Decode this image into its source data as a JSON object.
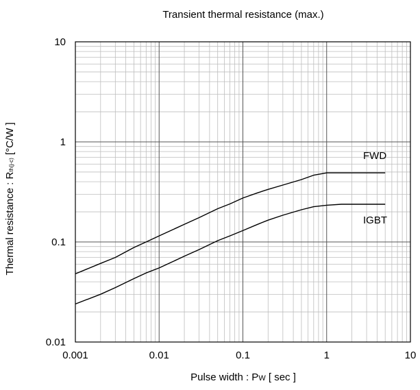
{
  "chart_data": {
    "type": "line",
    "title": "Transient thermal resistance (max.)",
    "xlabel": {
      "prefix": "Pulse width : P",
      "sub": "W",
      "suffix": " [ sec ]"
    },
    "ylabel": {
      "prefix": "Thermal resistance : R",
      "sub": "th(j-c)",
      "suffix": " [°C/W ]"
    },
    "x_scale": "log",
    "y_scale": "log",
    "xlim": [
      0.001,
      10
    ],
    "ylim": [
      0.01,
      10
    ],
    "x_ticks": [
      "0.001",
      "0.01",
      "0.1",
      "1",
      "10"
    ],
    "y_ticks": [
      "0.01",
      "0.1",
      "1",
      "10"
    ],
    "grid": true,
    "series": [
      {
        "name": "FWD",
        "x": [
          0.001,
          0.002,
          0.003,
          0.005,
          0.007,
          0.01,
          0.02,
          0.03,
          0.05,
          0.07,
          0.1,
          0.15,
          0.2,
          0.3,
          0.5,
          0.7,
          1.0,
          1.5,
          2,
          5
        ],
        "y": [
          0.048,
          0.061,
          0.07,
          0.088,
          0.1,
          0.115,
          0.15,
          0.175,
          0.215,
          0.24,
          0.275,
          0.31,
          0.335,
          0.37,
          0.42,
          0.465,
          0.49,
          0.49,
          0.49,
          0.49
        ]
      },
      {
        "name": "IGBT",
        "x": [
          0.001,
          0.002,
          0.003,
          0.005,
          0.007,
          0.01,
          0.02,
          0.03,
          0.05,
          0.07,
          0.1,
          0.15,
          0.2,
          0.3,
          0.5,
          0.7,
          1.0,
          1.5,
          2,
          5
        ],
        "y": [
          0.024,
          0.03,
          0.035,
          0.043,
          0.049,
          0.055,
          0.072,
          0.084,
          0.103,
          0.115,
          0.13,
          0.15,
          0.165,
          0.185,
          0.21,
          0.225,
          0.233,
          0.238,
          0.238,
          0.238
        ]
      }
    ]
  }
}
